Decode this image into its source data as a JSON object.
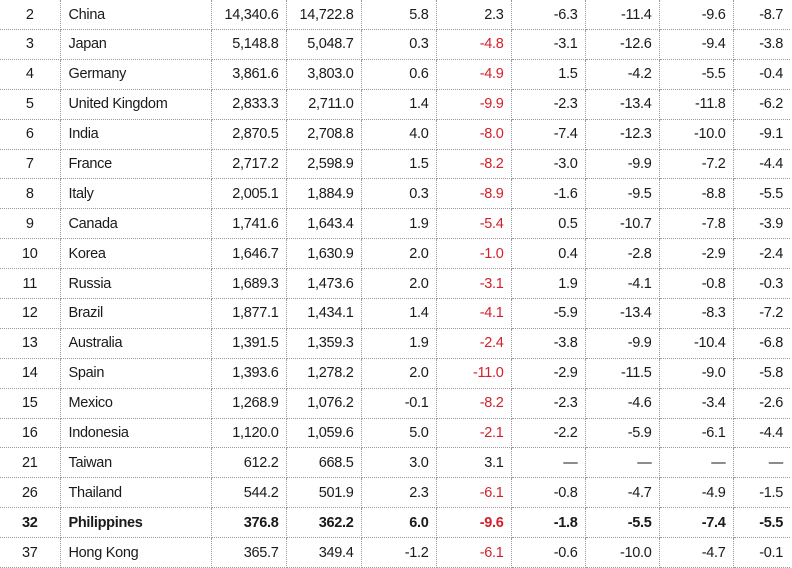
{
  "table": {
    "rows": [
      {
        "rank": "2",
        "country": "China",
        "v1": "14,340.6",
        "v2": "14,722.8",
        "v3": "5.8",
        "v4": "2.3",
        "v5": "-6.3",
        "v6": "-11.4",
        "v7": "-9.6",
        "v8": "-8.7",
        "bold": false
      },
      {
        "rank": "3",
        "country": "Japan",
        "v1": "5,148.8",
        "v2": "5,048.7",
        "v3": "0.3",
        "v4": "-4.8",
        "v5": "-3.1",
        "v6": "-12.6",
        "v7": "-9.4",
        "v8": "-3.8",
        "bold": false
      },
      {
        "rank": "4",
        "country": "Germany",
        "v1": "3,861.6",
        "v2": "3,803.0",
        "v3": "0.6",
        "v4": "-4.9",
        "v5": "1.5",
        "v6": "-4.2",
        "v7": "-5.5",
        "v8": "-0.4",
        "bold": false
      },
      {
        "rank": "5",
        "country": "United Kingdom",
        "v1": "2,833.3",
        "v2": "2,711.0",
        "v3": "1.4",
        "v4": "-9.9",
        "v5": "-2.3",
        "v6": "-13.4",
        "v7": "-11.8",
        "v8": "-6.2",
        "bold": false
      },
      {
        "rank": "6",
        "country": "India",
        "v1": "2,870.5",
        "v2": "2,708.8",
        "v3": "4.0",
        "v4": "-8.0",
        "v5": "-7.4",
        "v6": "-12.3",
        "v7": "-10.0",
        "v8": "-9.1",
        "bold": false
      },
      {
        "rank": "7",
        "country": "France",
        "v1": "2,717.2",
        "v2": "2,598.9",
        "v3": "1.5",
        "v4": "-8.2",
        "v5": "-3.0",
        "v6": "-9.9",
        "v7": "-7.2",
        "v8": "-4.4",
        "bold": false
      },
      {
        "rank": "8",
        "country": "Italy",
        "v1": "2,005.1",
        "v2": "1,884.9",
        "v3": "0.3",
        "v4": "-8.9",
        "v5": "-1.6",
        "v6": "-9.5",
        "v7": "-8.8",
        "v8": "-5.5",
        "bold": false
      },
      {
        "rank": "9",
        "country": "Canada",
        "v1": "1,741.6",
        "v2": "1,643.4",
        "v3": "1.9",
        "v4": "-5.4",
        "v5": "0.5",
        "v6": "-10.7",
        "v7": "-7.8",
        "v8": "-3.9",
        "bold": false
      },
      {
        "rank": "10",
        "country": "Korea",
        "v1": "1,646.7",
        "v2": "1,630.9",
        "v3": "2.0",
        "v4": "-1.0",
        "v5": "0.4",
        "v6": "-2.8",
        "v7": "-2.9",
        "v8": "-2.4",
        "bold": false
      },
      {
        "rank": "11",
        "country": "Russia",
        "v1": "1,689.3",
        "v2": "1,473.6",
        "v3": "2.0",
        "v4": "-3.1",
        "v5": "1.9",
        "v6": "-4.1",
        "v7": "-0.8",
        "v8": "-0.3",
        "bold": false
      },
      {
        "rank": "12",
        "country": "Brazil",
        "v1": "1,877.1",
        "v2": "1,434.1",
        "v3": "1.4",
        "v4": "-4.1",
        "v5": "-5.9",
        "v6": "-13.4",
        "v7": "-8.3",
        "v8": "-7.2",
        "bold": false
      },
      {
        "rank": "13",
        "country": "Australia",
        "v1": "1,391.5",
        "v2": "1,359.3",
        "v3": "1.9",
        "v4": "-2.4",
        "v5": "-3.8",
        "v6": "-9.9",
        "v7": "-10.4",
        "v8": "-6.8",
        "bold": false
      },
      {
        "rank": "14",
        "country": "Spain",
        "v1": "1,393.6",
        "v2": "1,278.2",
        "v3": "2.0",
        "v4": "-11.0",
        "v5": "-2.9",
        "v6": "-11.5",
        "v7": "-9.0",
        "v8": "-5.8",
        "bold": false
      },
      {
        "rank": "15",
        "country": "Mexico",
        "v1": "1,268.9",
        "v2": "1,076.2",
        "v3": "-0.1",
        "v4": "-8.2",
        "v5": "-2.3",
        "v6": "-4.6",
        "v7": "-3.4",
        "v8": "-2.6",
        "bold": false
      },
      {
        "rank": "16",
        "country": "Indonesia",
        "v1": "1,120.0",
        "v2": "1,059.6",
        "v3": "5.0",
        "v4": "-2.1",
        "v5": "-2.2",
        "v6": "-5.9",
        "v7": "-6.1",
        "v8": "-4.4",
        "bold": false
      },
      {
        "rank": "21",
        "country": "Taiwan",
        "v1": "612.2",
        "v2": "668.5",
        "v3": "3.0",
        "v4": "3.1",
        "v5": "—",
        "v6": "—",
        "v7": "—",
        "v8": "—",
        "bold": false
      },
      {
        "rank": "26",
        "country": "Thailand",
        "v1": "544.2",
        "v2": "501.9",
        "v3": "2.3",
        "v4": "-6.1",
        "v5": "-0.8",
        "v6": "-4.7",
        "v7": "-4.9",
        "v8": "-1.5",
        "bold": false
      },
      {
        "rank": "32",
        "country": "Philippines",
        "v1": "376.8",
        "v2": "362.2",
        "v3": "6.0",
        "v4": "-9.6",
        "v5": "-1.8",
        "v6": "-5.5",
        "v7": "-7.4",
        "v8": "-5.5",
        "bold": true
      },
      {
        "rank": "37",
        "country": "Hong Kong",
        "v1": "365.7",
        "v2": "349.4",
        "v3": "-1.2",
        "v4": "-6.1",
        "v5": "-0.6",
        "v6": "-10.0",
        "v7": "-4.7",
        "v8": "-0.1",
        "bold": false
      }
    ]
  },
  "colors": {
    "negative_highlight": "#d3202a",
    "text": "#1a1a1a",
    "rule": "#9a9a9a"
  }
}
